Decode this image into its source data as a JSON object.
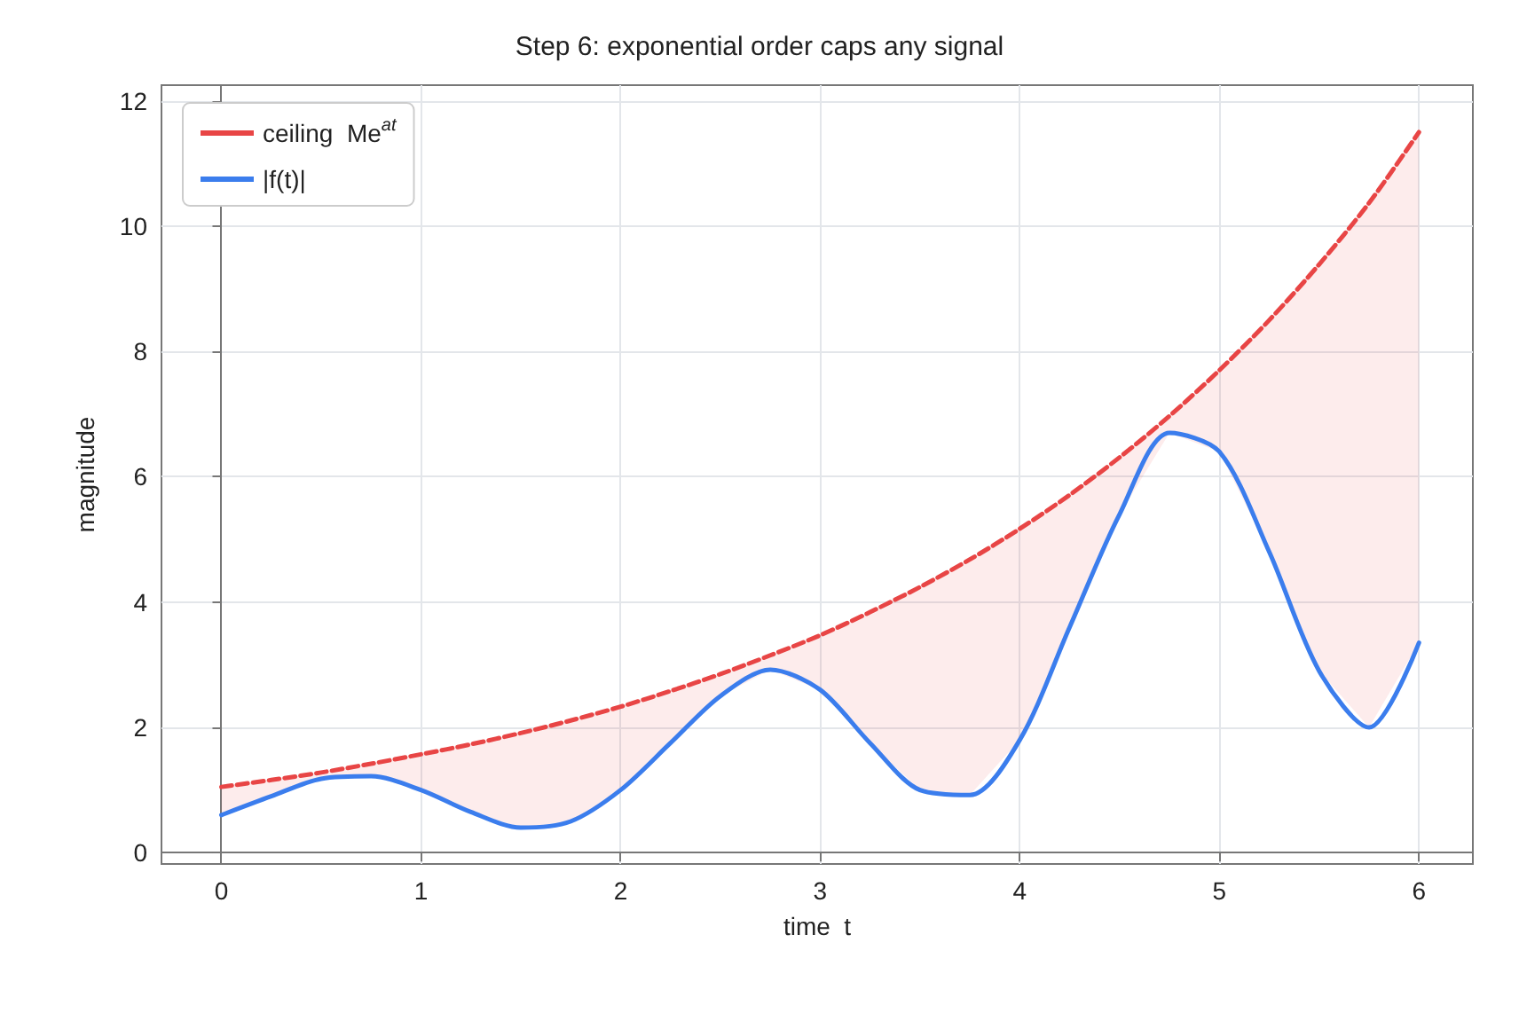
{
  "chart_data": {
    "type": "line",
    "title": "Step 6: exponential order caps any signal",
    "xlabel": "time  t",
    "ylabel": "magnitude",
    "x": [
      0,
      0.25,
      0.5,
      0.75,
      1,
      1.25,
      1.5,
      1.75,
      2,
      2.25,
      2.5,
      2.75,
      3,
      3.25,
      3.5,
      3.75,
      4,
      4.25,
      4.5,
      4.75,
      5,
      5.25,
      5.5,
      5.75,
      6
    ],
    "series": [
      {
        "name": "ceiling  Me$^{at}$",
        "color": "#e84545",
        "line_style": "dashed",
        "values": [
          1.05,
          1.16,
          1.28,
          1.42,
          1.57,
          1.73,
          1.91,
          2.11,
          2.33,
          2.58,
          2.85,
          3.15,
          3.47,
          3.84,
          4.24,
          4.68,
          5.17,
          5.71,
          6.31,
          6.97,
          7.7,
          8.5,
          9.39,
          10.37,
          11.5
        ],
        "lower": [
          0.6,
          0.9,
          1.18,
          1.22,
          1.0,
          0.65,
          0.4,
          0.5,
          1.0,
          1.75,
          2.5,
          2.92,
          2.6,
          1.75,
          1.0,
          0.92,
          1.8,
          3.6,
          5.4,
          6.7,
          6.4,
          4.8,
          2.9,
          2.0,
          3.35
        ],
        "upper": [
          1.05,
          1.16,
          1.28,
          1.42,
          1.57,
          1.73,
          1.91,
          2.11,
          2.33,
          2.58,
          2.85,
          3.15,
          3.47,
          3.84,
          4.24,
          4.68,
          5.17,
          5.71,
          6.31,
          6.97,
          7.7,
          8.5,
          9.39,
          10.37,
          11.5
        ]
      },
      {
        "name": "|f(t)|",
        "color": "#3b7ded",
        "line_style": "solid",
        "values": [
          0.6,
          0.9,
          1.18,
          1.22,
          1.0,
          0.65,
          0.4,
          0.5,
          1.0,
          1.75,
          2.5,
          2.92,
          2.6,
          1.75,
          1.0,
          0.92,
          1.8,
          3.6,
          5.4,
          6.7,
          6.4,
          4.8,
          2.9,
          2.0,
          3.35
        ]
      }
    ],
    "xlim": [
      -0.3,
      6.27
    ],
    "ylim": [
      -0.18,
      12.25
    ],
    "xticks": [
      0,
      1,
      2,
      3,
      4,
      5,
      6
    ],
    "yticks": [
      0,
      2,
      4,
      6,
      8,
      10,
      12
    ],
    "grid": true,
    "legend": "top left",
    "marker": "none"
  }
}
